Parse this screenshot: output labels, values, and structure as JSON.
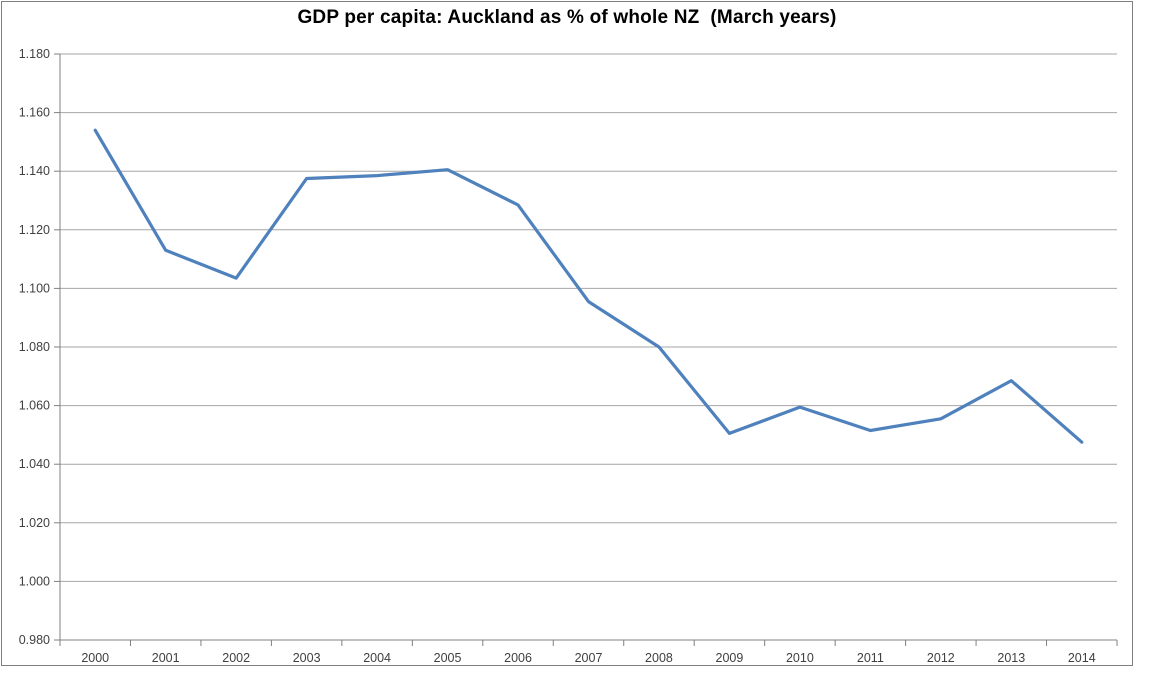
{
  "chart_data": {
    "type": "line",
    "title": "GDP per capita: Auckland as % of whole NZ  (March years)",
    "categories": [
      "2000",
      "2001",
      "2002",
      "2003",
      "2004",
      "2005",
      "2006",
      "2007",
      "2008",
      "2009",
      "2010",
      "2011",
      "2012",
      "2013",
      "2014"
    ],
    "values": [
      1.154,
      1.113,
      1.1035,
      1.1375,
      1.1385,
      1.1405,
      1.1285,
      1.0955,
      1.08,
      1.0505,
      1.0595,
      1.0515,
      1.0555,
      1.0685,
      1.0475
    ],
    "xlabel": "",
    "ylabel": "",
    "ylim": [
      0.98,
      1.18
    ],
    "ytick_step": 0.02,
    "ytick_decimals": 3,
    "grid": true,
    "legend": false,
    "marker": false,
    "colors": {
      "line": "#4f81bd",
      "gridline": "#a6a6a6",
      "axis": "#808080",
      "tick_label": "#404040",
      "title": "#000000",
      "background": "#ffffff",
      "border": "#7f7f7f"
    }
  }
}
